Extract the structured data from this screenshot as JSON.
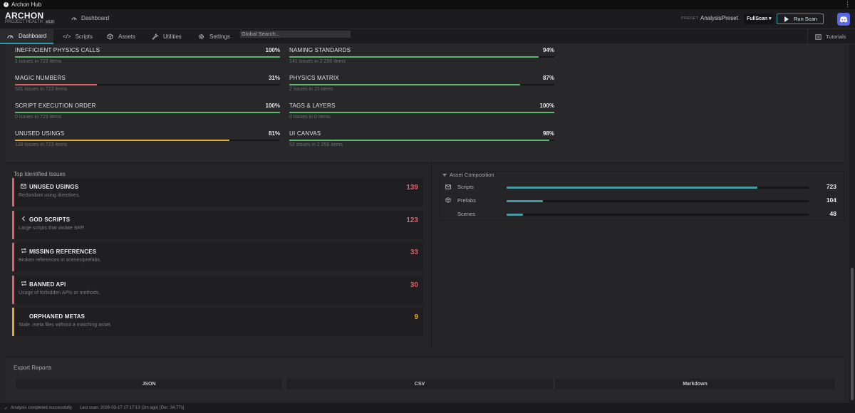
{
  "window": {
    "title": "Archon Hub",
    "menu_icon": "vertical-dots-icon"
  },
  "brand": {
    "name": "ARCHON",
    "subtitle": "PROJECT HEALTH",
    "version": "v1.0"
  },
  "breadcrumb": {
    "label": "Dashboard"
  },
  "toolbar": {
    "preset_caption": "PRESET",
    "preset_value": "AnalysisPreset",
    "scan_mode": "FullScan ▾",
    "run_label": "Run Scan"
  },
  "nav": {
    "tabs": [
      {
        "label": "Dashboard",
        "icon": "gauge-icon",
        "active": true
      },
      {
        "label": "Scripts",
        "icon": "code-icon"
      },
      {
        "label": "Assets",
        "icon": "cube-icon"
      },
      {
        "label": "Utilities",
        "icon": "wrench-icon"
      },
      {
        "label": "Settings",
        "icon": "gear-icon"
      }
    ],
    "search_placeholder": "Global Search...",
    "tutorials_label": "Tutorials"
  },
  "rules": [
    {
      "name": "INEFFICIENT PHYSICS CALLS",
      "percent": "100%",
      "value": 100,
      "sub": "1 issues in 723 items",
      "color": "#5bb86a"
    },
    {
      "name": "NAMING STANDARDS",
      "percent": "94%",
      "value": 94,
      "sub": "141 issues in 2 256 items",
      "color": "#5bb86a"
    },
    {
      "name": "MAGIC NUMBERS",
      "percent": "31%",
      "value": 31,
      "sub": "501 issues in 723 items",
      "color": "#e05c62"
    },
    {
      "name": "PHYSICS MATRIX",
      "percent": "87%",
      "value": 87,
      "sub": "2 issues in 15 items",
      "color": "#5bb86a"
    },
    {
      "name": "SCRIPT EXECUTION ORDER",
      "percent": "100%",
      "value": 100,
      "sub": "0 issues in 723 items",
      "color": "#5bb86a"
    },
    {
      "name": "TAGS & LAYERS",
      "percent": "100%",
      "value": 100,
      "sub": "0 issues in 0 items",
      "color": "#5bb86a"
    },
    {
      "name": "UNUSED USINGS",
      "percent": "81%",
      "value": 81,
      "sub": "139 issues in 723 items",
      "color": "#e3a62e"
    },
    {
      "name": "UI CANVAS",
      "percent": "98%",
      "value": 98,
      "sub": "52 issues in 2 256 items",
      "color": "#5bb86a"
    }
  ],
  "top_issues": {
    "heading": "Top Identified Issues",
    "items": [
      {
        "title": "UNUSED USINGS",
        "desc": "Redundant using directives.",
        "count": "139",
        "icon": "envelope-icon",
        "severity": "error"
      },
      {
        "title": "GOD SCRIPTS",
        "desc": "Large scripts that violate SRP.",
        "count": "123",
        "icon": "chevron-left-icon",
        "severity": "error"
      },
      {
        "title": "MISSING REFERENCES",
        "desc": "Broken references in scenes/prefabs.",
        "count": "33",
        "icon": "repeat-icon",
        "severity": "error"
      },
      {
        "title": "BANNED API",
        "desc": "Usage of forbidden APIs or methods.",
        "count": "30",
        "icon": "repeat-icon",
        "severity": "error"
      },
      {
        "title": "ORPHANED METAS",
        "desc": "Stale .meta files without a matching asset.",
        "count": "9",
        "icon": "",
        "severity": "warning"
      }
    ]
  },
  "composition": {
    "heading": "Asset Composition",
    "rows": [
      {
        "label": "Scripts",
        "value": "723",
        "fraction": 0.83,
        "icon": "envelope-icon"
      },
      {
        "label": "Prefabs",
        "value": "104",
        "fraction": 0.12,
        "icon": "cube-icon"
      },
      {
        "label": "Scenes",
        "value": "48",
        "fraction": 0.055,
        "icon": ""
      }
    ]
  },
  "export": {
    "heading": "Export Reports",
    "buttons": [
      "JSON",
      "CSV",
      "Markdown"
    ]
  },
  "status": {
    "message": "Analysis completed successfully.",
    "last_scan": "Last scan: 2026-03-17 17:17:13 (2m ago) [Dur: 34,77s]"
  }
}
